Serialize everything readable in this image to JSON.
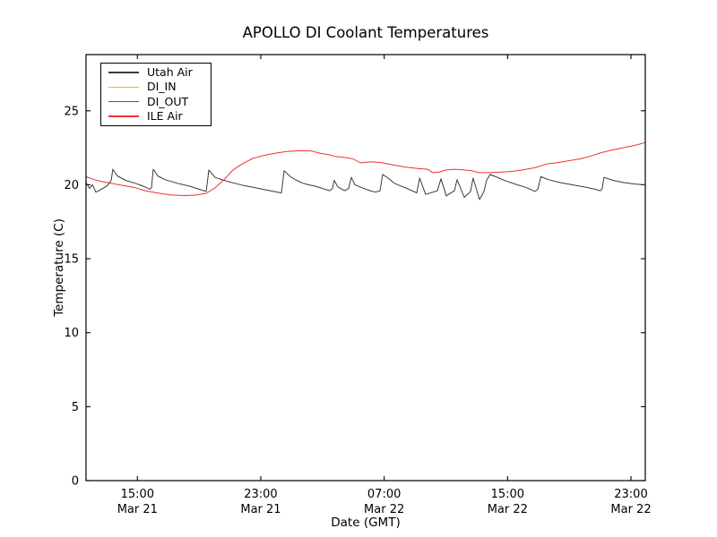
{
  "chart_data": {
    "type": "line",
    "title": "APOLLO DI Coolant Temperatures",
    "xlabel": "Date (GMT)",
    "ylabel": "Temperature (C)",
    "x_unit": "hours since Mar 21 00:00 GMT",
    "xlim": [
      11.67,
      47.93
    ],
    "ylim": [
      0,
      28.8
    ],
    "grid": false,
    "legend_position": "upper left",
    "frame_color": "#000000",
    "y_ticks": [
      0,
      5,
      10,
      15,
      20,
      25
    ],
    "x_ticks": [
      {
        "value": 15,
        "time": "15:00",
        "date": "Mar 21"
      },
      {
        "value": 23,
        "time": "23:00",
        "date": "Mar 21"
      },
      {
        "value": 31,
        "time": "07:00",
        "date": "Mar 22"
      },
      {
        "value": 39,
        "time": "15:00",
        "date": "Mar 22"
      },
      {
        "value": 47,
        "time": "23:00",
        "date": "Mar 22"
      }
    ],
    "series": [
      {
        "name": "Utah Air",
        "color": "#3a3a3a",
        "points": [
          [
            11.67,
            20.15
          ],
          [
            11.9,
            19.75
          ],
          [
            12.08,
            20.0
          ],
          [
            12.31,
            19.5
          ],
          [
            12.54,
            19.62
          ],
          [
            12.83,
            19.8
          ],
          [
            13.06,
            19.95
          ],
          [
            13.3,
            20.3
          ],
          [
            13.41,
            21.05
          ],
          [
            13.7,
            20.6
          ],
          [
            14.23,
            20.3
          ],
          [
            14.87,
            20.1
          ],
          [
            15.39,
            19.9
          ],
          [
            15.8,
            19.7
          ],
          [
            15.91,
            19.8
          ],
          [
            16.03,
            21.05
          ],
          [
            16.32,
            20.6
          ],
          [
            16.78,
            20.35
          ],
          [
            17.6,
            20.1
          ],
          [
            18.41,
            19.9
          ],
          [
            18.99,
            19.7
          ],
          [
            19.46,
            19.55
          ],
          [
            19.63,
            21.0
          ],
          [
            20.04,
            20.5
          ],
          [
            20.62,
            20.3
          ],
          [
            21.32,
            20.1
          ],
          [
            21.9,
            19.95
          ],
          [
            22.65,
            19.8
          ],
          [
            23.35,
            19.65
          ],
          [
            24.1,
            19.5
          ],
          [
            24.34,
            19.45
          ],
          [
            24.51,
            20.95
          ],
          [
            24.92,
            20.55
          ],
          [
            25.32,
            20.3
          ],
          [
            25.73,
            20.1
          ],
          [
            26.08,
            20.0
          ],
          [
            26.55,
            19.9
          ],
          [
            27.01,
            19.75
          ],
          [
            27.47,
            19.6
          ],
          [
            27.65,
            19.75
          ],
          [
            27.76,
            20.3
          ],
          [
            28.0,
            19.85
          ],
          [
            28.46,
            19.6
          ],
          [
            28.69,
            19.75
          ],
          [
            28.87,
            20.5
          ],
          [
            29.1,
            20.0
          ],
          [
            29.57,
            19.8
          ],
          [
            30.09,
            19.6
          ],
          [
            30.44,
            19.5
          ],
          [
            30.73,
            19.6
          ],
          [
            30.9,
            20.7
          ],
          [
            31.25,
            20.45
          ],
          [
            31.66,
            20.1
          ],
          [
            32.12,
            19.9
          ],
          [
            32.59,
            19.7
          ],
          [
            33.11,
            19.45
          ],
          [
            33.3,
            20.45
          ],
          [
            33.69,
            19.35
          ],
          [
            34.45,
            19.6
          ],
          [
            34.68,
            20.4
          ],
          [
            35.03,
            19.25
          ],
          [
            35.55,
            19.6
          ],
          [
            35.73,
            20.35
          ],
          [
            36.19,
            19.15
          ],
          [
            36.6,
            19.55
          ],
          [
            36.77,
            20.45
          ],
          [
            37.18,
            19.0
          ],
          [
            37.47,
            19.55
          ],
          [
            37.64,
            20.3
          ],
          [
            37.87,
            20.7
          ],
          [
            38.45,
            20.45
          ],
          [
            38.92,
            20.25
          ],
          [
            39.62,
            20.0
          ],
          [
            40.26,
            19.8
          ],
          [
            40.78,
            19.55
          ],
          [
            40.96,
            19.7
          ],
          [
            41.16,
            20.55
          ],
          [
            41.65,
            20.35
          ],
          [
            42.41,
            20.15
          ],
          [
            43.16,
            20.0
          ],
          [
            43.98,
            19.85
          ],
          [
            44.67,
            19.7
          ],
          [
            45.02,
            19.6
          ],
          [
            45.14,
            19.75
          ],
          [
            45.25,
            20.5
          ],
          [
            45.84,
            20.3
          ],
          [
            46.53,
            20.15
          ],
          [
            47.23,
            20.05
          ],
          [
            47.81,
            20.0
          ],
          [
            47.93,
            20.0
          ]
        ]
      },
      {
        "name": "DI_IN",
        "color": "#ffab2e",
        "points": []
      },
      {
        "name": "DI_OUT",
        "color": "#8b2f97",
        "points": []
      },
      {
        "name": "ILE Air",
        "color": "#f03030",
        "points": [
          [
            11.67,
            20.55
          ],
          [
            12.19,
            20.35
          ],
          [
            12.77,
            20.2
          ],
          [
            13.3,
            20.1
          ],
          [
            14.06,
            19.95
          ],
          [
            14.87,
            19.8
          ],
          [
            15.51,
            19.6
          ],
          [
            16.26,
            19.45
          ],
          [
            17.13,
            19.32
          ],
          [
            18.0,
            19.27
          ],
          [
            18.76,
            19.3
          ],
          [
            19.46,
            19.42
          ],
          [
            20.04,
            19.8
          ],
          [
            20.62,
            20.35
          ],
          [
            21.2,
            21.0
          ],
          [
            21.78,
            21.4
          ],
          [
            22.48,
            21.78
          ],
          [
            23.17,
            21.98
          ],
          [
            23.87,
            22.12
          ],
          [
            24.68,
            22.25
          ],
          [
            25.55,
            22.3
          ],
          [
            26.31,
            22.28
          ],
          [
            26.89,
            22.12
          ],
          [
            27.36,
            22.05
          ],
          [
            27.82,
            21.92
          ],
          [
            28.4,
            21.85
          ],
          [
            28.98,
            21.75
          ],
          [
            29.45,
            21.48
          ],
          [
            30.14,
            21.55
          ],
          [
            30.84,
            21.5
          ],
          [
            31.54,
            21.35
          ],
          [
            32.35,
            21.2
          ],
          [
            33.16,
            21.1
          ],
          [
            33.8,
            21.05
          ],
          [
            34.15,
            20.82
          ],
          [
            34.55,
            20.85
          ],
          [
            35.02,
            21.0
          ],
          [
            35.6,
            21.05
          ],
          [
            36.18,
            21.0
          ],
          [
            36.7,
            20.95
          ],
          [
            37.11,
            20.82
          ],
          [
            37.75,
            20.82
          ],
          [
            38.5,
            20.85
          ],
          [
            39.2,
            20.9
          ],
          [
            39.96,
            21.0
          ],
          [
            40.77,
            21.15
          ],
          [
            41.53,
            21.4
          ],
          [
            42.22,
            21.5
          ],
          [
            42.92,
            21.62
          ],
          [
            43.73,
            21.75
          ],
          [
            44.43,
            21.95
          ],
          [
            45.01,
            22.15
          ],
          [
            45.7,
            22.33
          ],
          [
            46.46,
            22.5
          ],
          [
            47.21,
            22.65
          ],
          [
            47.93,
            22.85
          ]
        ]
      }
    ]
  }
}
